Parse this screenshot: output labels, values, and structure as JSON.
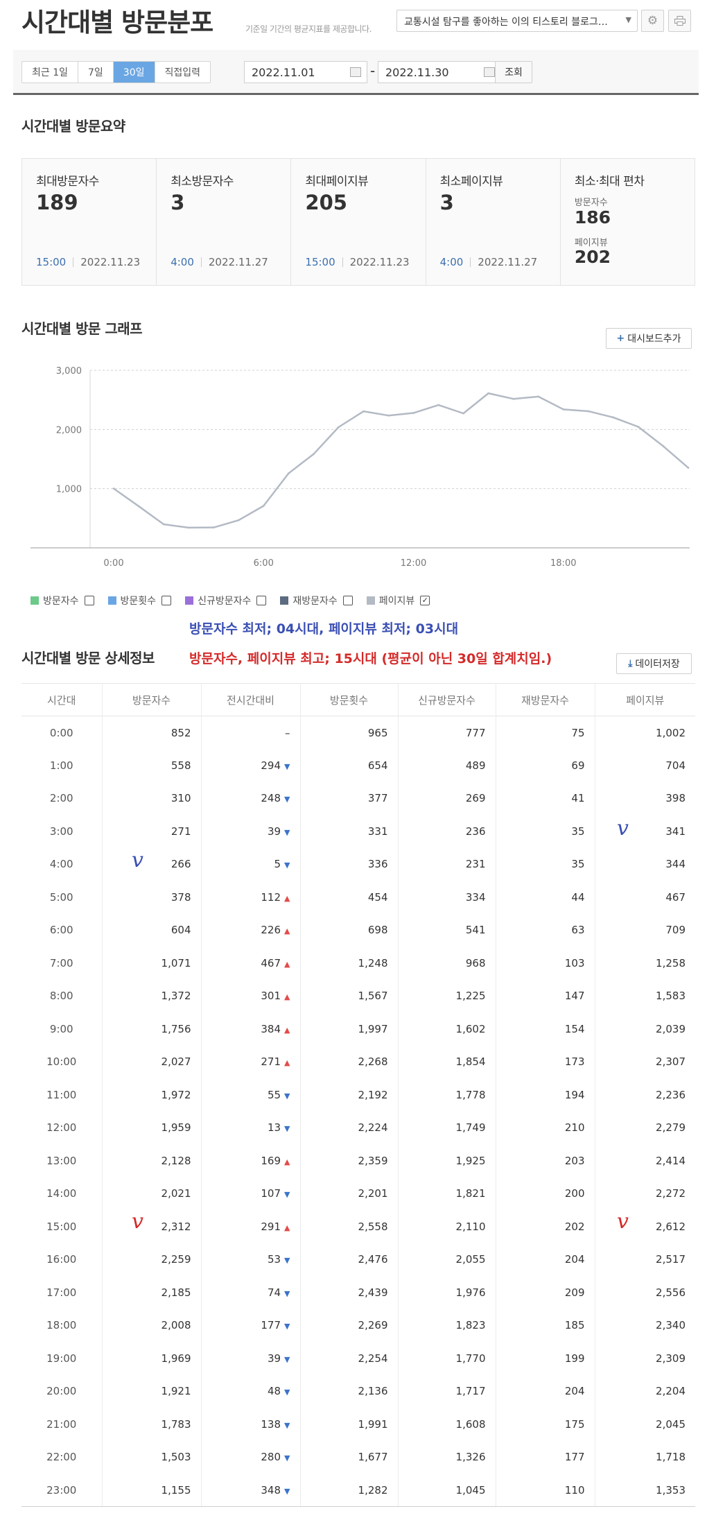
{
  "header": {
    "title": "시간대별 방문분포",
    "subtitle": "기준일 기간의 평균지표를 제공합니다.",
    "blog_select": "교통시설 탐구를 좋아하는 이의 티스토리 블로그…"
  },
  "filters": {
    "tabs": [
      "최근 1일",
      "7일",
      "30일",
      "직접입력"
    ],
    "active_tab": "30일",
    "start_date": "2022.11.01",
    "end_date": "2022.11.30",
    "dash": "-",
    "query_label": "조회"
  },
  "summary": {
    "title": "시간대별 방문요약",
    "cards": [
      {
        "label": "최대방문자수",
        "value": "189",
        "hour": "15:00",
        "date": "2022.11.23"
      },
      {
        "label": "최소방문자수",
        "value": "3",
        "hour": "4:00",
        "date": "2022.11.27"
      },
      {
        "label": "최대페이지뷰",
        "value": "205",
        "hour": "15:00",
        "date": "2022.11.23"
      },
      {
        "label": "최소페이지뷰",
        "value": "3",
        "hour": "4:00",
        "date": "2022.11.27"
      }
    ],
    "deviation": {
      "label": "최소·최대 편차",
      "visitors_label": "방문자수",
      "visitors_value": "186",
      "pageviews_label": "페이지뷰",
      "pageviews_value": "202"
    }
  },
  "graph": {
    "title": "시간대별 방문 그래프",
    "dashboard_add_label": "대시보드추가"
  },
  "chart_data": {
    "type": "line",
    "title": "",
    "xlabel": "",
    "ylabel": "",
    "x": [
      "0:00",
      "1:00",
      "2:00",
      "3:00",
      "4:00",
      "5:00",
      "6:00",
      "7:00",
      "8:00",
      "9:00",
      "10:00",
      "11:00",
      "12:00",
      "13:00",
      "14:00",
      "15:00",
      "16:00",
      "17:00",
      "18:00",
      "19:00",
      "20:00",
      "21:00",
      "22:00",
      "23:00"
    ],
    "x_tick_labels": [
      "0:00",
      "6:00",
      "12:00",
      "18:00"
    ],
    "y_tick_labels": [
      "1,000",
      "2,000",
      "3,000"
    ],
    "ylim": [
      0,
      3000
    ],
    "grid": true,
    "series": [
      {
        "name": "페이지뷰",
        "color": "#b3bac4",
        "values": [
          1002,
          704,
          398,
          341,
          344,
          467,
          709,
          1258,
          1583,
          2039,
          2307,
          2236,
          2279,
          2414,
          2272,
          2612,
          2517,
          2556,
          2340,
          2309,
          2204,
          2045,
          1718,
          1353
        ]
      }
    ]
  },
  "legend": [
    {
      "label": "방문자수",
      "color": "#6cc98a",
      "checked": false
    },
    {
      "label": "방문횟수",
      "color": "#6aa6e3",
      "checked": false
    },
    {
      "label": "신규방문자수",
      "color": "#9b6fd9",
      "checked": false
    },
    {
      "label": "재방문자수",
      "color": "#5c6b80",
      "checked": false
    },
    {
      "label": "페이지뷰",
      "color": "#b3bac4",
      "checked": true
    }
  ],
  "annotations": {
    "min_note": "방문자수 최저; 04시대, 페이지뷰 최저; 03시대",
    "max_note": "방문자수, 페이지뷰 최고; 15시대 (평균이 아닌 30일 합계치임.)",
    "mark": "v",
    "min_color": "#3a4fb3",
    "max_color": "#d42a2a"
  },
  "detail": {
    "title": "시간대별 방문 상세정보",
    "save_label": "데이터저장",
    "columns": [
      "시간대",
      "방문자수",
      "전시간대비",
      "방문횟수",
      "신규방문자수",
      "재방문자수",
      "페이지뷰"
    ],
    "rows": [
      {
        "hour": "0:00",
        "visitors": "852",
        "diff": "–",
        "dir": "none",
        "visits": "965",
        "new": "777",
        "returning": "75",
        "pageviews": "1,002"
      },
      {
        "hour": "1:00",
        "visitors": "558",
        "diff": "294",
        "dir": "down",
        "visits": "654",
        "new": "489",
        "returning": "69",
        "pageviews": "704"
      },
      {
        "hour": "2:00",
        "visitors": "310",
        "diff": "248",
        "dir": "down",
        "visits": "377",
        "new": "269",
        "returning": "41",
        "pageviews": "398"
      },
      {
        "hour": "3:00",
        "visitors": "271",
        "diff": "39",
        "dir": "down",
        "visits": "331",
        "new": "236",
        "returning": "35",
        "pageviews": "341"
      },
      {
        "hour": "4:00",
        "visitors": "266",
        "diff": "5",
        "dir": "down",
        "visits": "336",
        "new": "231",
        "returning": "35",
        "pageviews": "344"
      },
      {
        "hour": "5:00",
        "visitors": "378",
        "diff": "112",
        "dir": "up",
        "visits": "454",
        "new": "334",
        "returning": "44",
        "pageviews": "467"
      },
      {
        "hour": "6:00",
        "visitors": "604",
        "diff": "226",
        "dir": "up",
        "visits": "698",
        "new": "541",
        "returning": "63",
        "pageviews": "709"
      },
      {
        "hour": "7:00",
        "visitors": "1,071",
        "diff": "467",
        "dir": "up",
        "visits": "1,248",
        "new": "968",
        "returning": "103",
        "pageviews": "1,258"
      },
      {
        "hour": "8:00",
        "visitors": "1,372",
        "diff": "301",
        "dir": "up",
        "visits": "1,567",
        "new": "1,225",
        "returning": "147",
        "pageviews": "1,583"
      },
      {
        "hour": "9:00",
        "visitors": "1,756",
        "diff": "384",
        "dir": "up",
        "visits": "1,997",
        "new": "1,602",
        "returning": "154",
        "pageviews": "2,039"
      },
      {
        "hour": "10:00",
        "visitors": "2,027",
        "diff": "271",
        "dir": "up",
        "visits": "2,268",
        "new": "1,854",
        "returning": "173",
        "pageviews": "2,307"
      },
      {
        "hour": "11:00",
        "visitors": "1,972",
        "diff": "55",
        "dir": "down",
        "visits": "2,192",
        "new": "1,778",
        "returning": "194",
        "pageviews": "2,236"
      },
      {
        "hour": "12:00",
        "visitors": "1,959",
        "diff": "13",
        "dir": "down",
        "visits": "2,224",
        "new": "1,749",
        "returning": "210",
        "pageviews": "2,279"
      },
      {
        "hour": "13:00",
        "visitors": "2,128",
        "diff": "169",
        "dir": "up",
        "visits": "2,359",
        "new": "1,925",
        "returning": "203",
        "pageviews": "2,414"
      },
      {
        "hour": "14:00",
        "visitors": "2,021",
        "diff": "107",
        "dir": "down",
        "visits": "2,201",
        "new": "1,821",
        "returning": "200",
        "pageviews": "2,272"
      },
      {
        "hour": "15:00",
        "visitors": "2,312",
        "diff": "291",
        "dir": "up",
        "visits": "2,558",
        "new": "2,110",
        "returning": "202",
        "pageviews": "2,612"
      },
      {
        "hour": "16:00",
        "visitors": "2,259",
        "diff": "53",
        "dir": "down",
        "visits": "2,476",
        "new": "2,055",
        "returning": "204",
        "pageviews": "2,517"
      },
      {
        "hour": "17:00",
        "visitors": "2,185",
        "diff": "74",
        "dir": "down",
        "visits": "2,439",
        "new": "1,976",
        "returning": "209",
        "pageviews": "2,556"
      },
      {
        "hour": "18:00",
        "visitors": "2,008",
        "diff": "177",
        "dir": "down",
        "visits": "2,269",
        "new": "1,823",
        "returning": "185",
        "pageviews": "2,340"
      },
      {
        "hour": "19:00",
        "visitors": "1,969",
        "diff": "39",
        "dir": "down",
        "visits": "2,254",
        "new": "1,770",
        "returning": "199",
        "pageviews": "2,309"
      },
      {
        "hour": "20:00",
        "visitors": "1,921",
        "diff": "48",
        "dir": "down",
        "visits": "2,136",
        "new": "1,717",
        "returning": "204",
        "pageviews": "2,204"
      },
      {
        "hour": "21:00",
        "visitors": "1,783",
        "diff": "138",
        "dir": "down",
        "visits": "1,991",
        "new": "1,608",
        "returning": "175",
        "pageviews": "2,045"
      },
      {
        "hour": "22:00",
        "visitors": "1,503",
        "diff": "280",
        "dir": "down",
        "visits": "1,677",
        "new": "1,326",
        "returning": "177",
        "pageviews": "1,718"
      },
      {
        "hour": "23:00",
        "visitors": "1,155",
        "diff": "348",
        "dir": "down",
        "visits": "1,282",
        "new": "1,045",
        "returning": "110",
        "pageviews": "1,353"
      }
    ]
  }
}
